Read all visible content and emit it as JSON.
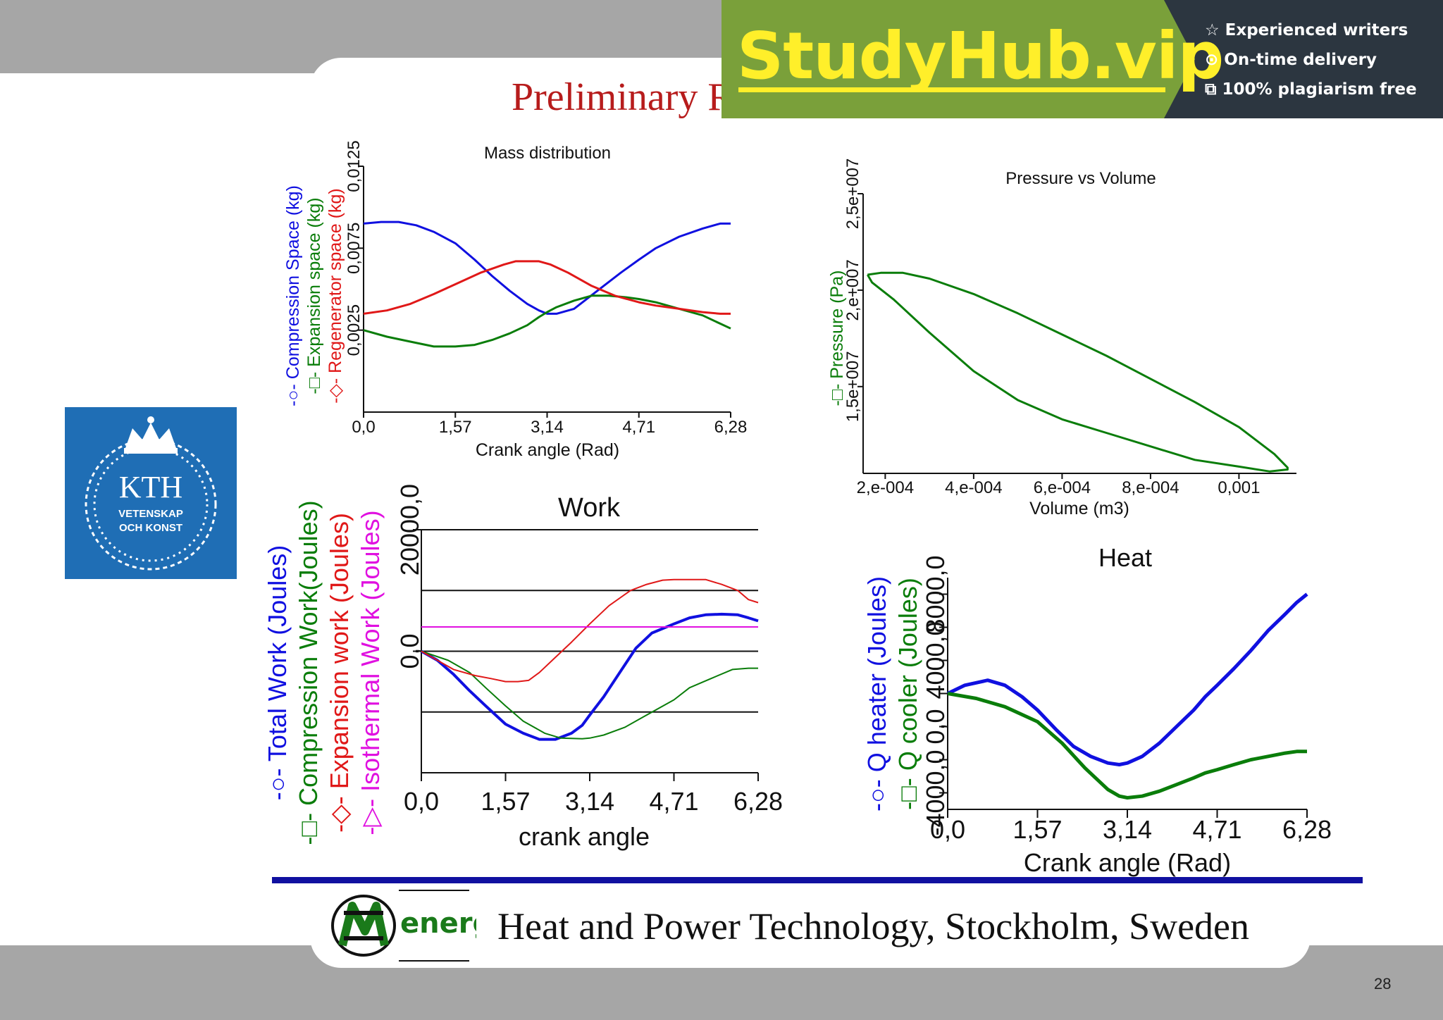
{
  "slide": {
    "title_visible": "Preliminary R",
    "footer": "Heat and Power Technology, Stockholm, Sweden",
    "page_number": "28",
    "logo": {
      "line1": "KTH",
      "line2": "VETENSKAP",
      "line3": "OCH KONST",
      "icon": "kth-crown-wreath-logo"
    },
    "footer_logo": {
      "text": "energi",
      "icon": "energi-logo"
    }
  },
  "ad": {
    "brand": "StudyHub.vip",
    "features": [
      {
        "icon": "star-icon",
        "glyph": "☆",
        "text": "Experienced writers"
      },
      {
        "icon": "clock-icon",
        "glyph": "⊙",
        "text": "On-time delivery"
      },
      {
        "icon": "copy-icon",
        "glyph": "⧉",
        "text": "100% plagiarism free"
      }
    ]
  },
  "colors": {
    "blue": "#1010e0",
    "green": "#0a7d0a",
    "red": "#e01818",
    "magenta": "#e010e0",
    "title_red": "#b71c1c"
  },
  "chart_data": [
    {
      "id": "mass",
      "type": "line",
      "title": "Mass distribution",
      "xlabel": "Crank angle (Rad)",
      "xlim": [
        0,
        6.28
      ],
      "ylim": [
        -0.0025,
        0.0125
      ],
      "xticks": [
        0,
        1.57,
        3.14,
        4.71,
        6.28
      ],
      "xtick_labels": [
        "0,0",
        "1,57",
        "3,14",
        "4,71",
        "6,28"
      ],
      "yticks": [
        0.0025,
        0.0075,
        0.0125
      ],
      "ytick_labels": [
        "0,0025",
        "0,0075",
        "0,0125"
      ],
      "series": [
        {
          "name": "Compression Space (kg)",
          "color": "#1010e0",
          "marker": "circle",
          "legend_glyph": "-○-",
          "x": [
            0,
            0.3,
            0.6,
            0.9,
            1.2,
            1.57,
            1.9,
            2.2,
            2.5,
            2.8,
            3.0,
            3.14,
            3.3,
            3.6,
            4.0,
            4.4,
            4.71,
            5.0,
            5.4,
            5.8,
            6.1,
            6.28
          ],
          "y": [
            0.009,
            0.0091,
            0.0091,
            0.0089,
            0.0085,
            0.0078,
            0.0068,
            0.0058,
            0.0049,
            0.0041,
            0.0037,
            0.0035,
            0.0035,
            0.0038,
            0.0049,
            0.006,
            0.0068,
            0.0075,
            0.0082,
            0.0087,
            0.009,
            0.009
          ]
        },
        {
          "name": "Expansion space (kg)",
          "color": "#0a7d0a",
          "marker": "square",
          "legend_glyph": "-□-",
          "x": [
            0,
            0.4,
            0.8,
            1.2,
            1.57,
            1.9,
            2.2,
            2.5,
            2.8,
            3.0,
            3.14,
            3.3,
            3.6,
            3.9,
            4.2,
            4.5,
            4.71,
            5.0,
            5.4,
            5.8,
            6.1,
            6.28
          ],
          "y": [
            0.0025,
            0.0021,
            0.0018,
            0.0015,
            0.0015,
            0.0016,
            0.0019,
            0.0023,
            0.0028,
            0.0033,
            0.0036,
            0.0039,
            0.0043,
            0.0046,
            0.0046,
            0.0045,
            0.0044,
            0.0042,
            0.0038,
            0.0034,
            0.0029,
            0.0026
          ]
        },
        {
          "name": "Regenerator space (kg)",
          "color": "#e01818",
          "marker": "diamond",
          "legend_glyph": "-◇-",
          "x": [
            0,
            0.4,
            0.8,
            1.2,
            1.57,
            2.0,
            2.4,
            2.6,
            2.8,
            3.0,
            3.2,
            3.5,
            3.9,
            4.3,
            4.71,
            5.0,
            5.4,
            5.8,
            6.1,
            6.28
          ],
          "y": [
            0.0035,
            0.0037,
            0.0041,
            0.0047,
            0.0053,
            0.006,
            0.0065,
            0.0067,
            0.0067,
            0.0067,
            0.0065,
            0.006,
            0.0052,
            0.0046,
            0.0042,
            0.004,
            0.0038,
            0.0036,
            0.0035,
            0.0035
          ]
        }
      ]
    },
    {
      "id": "pv",
      "type": "line",
      "title": "Pressure vs Volume",
      "xlabel": "Volume (m3)",
      "ylabel": "Pressure (Pa)",
      "xlim": [
        0.00015,
        0.00113
      ],
      "ylim": [
        10500000,
        25000000
      ],
      "xticks": [
        0.0002,
        0.0004,
        0.0006,
        0.0008,
        0.001
      ],
      "xtick_labels": [
        "2,e-004",
        "4,e-004",
        "6,e-004",
        "8,e-004",
        "0,001"
      ],
      "yticks": [
        15000000,
        20000000,
        25000000
      ],
      "ytick_labels": [
        "1,5e+007",
        "2,e+007",
        "2,5e+007"
      ],
      "series": [
        {
          "name": "Pressure (Pa)",
          "color": "#0a7d0a",
          "marker": "square",
          "legend_glyph": "-□-",
          "x": [
            0.00016,
            0.00019,
            0.00024,
            0.0003,
            0.0004,
            0.0005,
            0.0006,
            0.0007,
            0.0008,
            0.0009,
            0.001,
            0.00108,
            0.00111,
            0.00111,
            0.00107,
            0.001,
            0.0009,
            0.0008,
            0.0007,
            0.0006,
            0.0005,
            0.0004,
            0.0003,
            0.00022,
            0.00017,
            0.00016
          ],
          "y": [
            20800000,
            20900000,
            20900000,
            20600000,
            19800000,
            18800000,
            17700000,
            16600000,
            15400000,
            14200000,
            12900000,
            11500000,
            10800000,
            10700000,
            10600000,
            10850000,
            11200000,
            11900000,
            12600000,
            13300000,
            14300000,
            15800000,
            17800000,
            19500000,
            20400000,
            20800000
          ]
        }
      ]
    },
    {
      "id": "work",
      "type": "line",
      "title": "Work",
      "xlabel": "crank angle",
      "xlim": [
        0,
        6.28
      ],
      "ylim": [
        -20000,
        20000
      ],
      "xticks": [
        0,
        1.57,
        3.14,
        4.71,
        6.28
      ],
      "xtick_labels": [
        "0,0",
        "1,57",
        "3,14",
        "4,71",
        "6,28"
      ],
      "yticks": [
        0,
        20000
      ],
      "ytick_labels": [
        "0,0",
        "20000,0"
      ],
      "hlines": [
        20000,
        10000,
        0,
        -10000
      ],
      "series": [
        {
          "name": "Total Work (Joules)",
          "color": "#1010e0",
          "marker": "circle",
          "legend_glyph": "-○-",
          "width": 4,
          "x": [
            0,
            0.3,
            0.6,
            0.9,
            1.2,
            1.57,
            1.9,
            2.2,
            2.5,
            2.8,
            3.0,
            3.14,
            3.4,
            3.7,
            4.0,
            4.3,
            4.71,
            5.0,
            5.3,
            5.6,
            5.9,
            6.1,
            6.28
          ],
          "y": [
            0,
            -1500,
            -3800,
            -6500,
            -9000,
            -12000,
            -13500,
            -14500,
            -14500,
            -13500,
            -12200,
            -10500,
            -7500,
            -3500,
            500,
            3000,
            4500,
            5500,
            6000,
            6100,
            6000,
            5500,
            5000
          ]
        },
        {
          "name": "Compression Work(Joules)",
          "color": "#0a7d0a",
          "marker": "square",
          "legend_glyph": "-□-",
          "width": 2,
          "x": [
            0,
            0.5,
            0.9,
            1.2,
            1.57,
            1.9,
            2.3,
            2.6,
            3.0,
            3.14,
            3.4,
            3.8,
            4.2,
            4.71,
            5.0,
            5.4,
            5.8,
            6.1,
            6.28
          ],
          "y": [
            0,
            -1500,
            -3500,
            -6000,
            -9000,
            -11500,
            -13500,
            -14300,
            -14400,
            -14300,
            -13800,
            -12500,
            -10500,
            -8000,
            -6000,
            -4500,
            -3000,
            -2800,
            -2800
          ]
        },
        {
          "name": "Expansion work (Joules)",
          "color": "#e01818",
          "marker": "diamond",
          "legend_glyph": "-◇-",
          "width": 2,
          "x": [
            0,
            0.3,
            0.6,
            1.0,
            1.3,
            1.57,
            1.8,
            2.0,
            2.2,
            2.5,
            2.8,
            3.14,
            3.5,
            3.9,
            4.2,
            4.5,
            4.71,
            5.0,
            5.3,
            5.6,
            5.9,
            6.1,
            6.28
          ],
          "y": [
            0,
            -1500,
            -3000,
            -4000,
            -4500,
            -5000,
            -5000,
            -4800,
            -3500,
            -1000,
            1500,
            4500,
            7500,
            10000,
            11000,
            11700,
            11800,
            11800,
            11800,
            11000,
            10000,
            8500,
            8000
          ]
        },
        {
          "name": "Isothermal Work (Joules)",
          "color": "#e010e0",
          "marker": "triangle",
          "legend_glyph": "-▷-",
          "width": 2,
          "x": [
            0,
            6.28
          ],
          "y": [
            4000,
            4000
          ]
        }
      ]
    },
    {
      "id": "heat",
      "type": "line",
      "title": "Heat",
      "xlabel": "Crank angle (Rad)",
      "xlim": [
        0,
        6.28
      ],
      "ylim": [
        -5000,
        9000
      ],
      "xticks": [
        0,
        1.57,
        3.14,
        4.71,
        6.28
      ],
      "xtick_labels": [
        "0,0",
        "1,57",
        "3,14",
        "4,71",
        "6,28"
      ],
      "yticks": [
        -4000,
        -2000,
        0,
        2000,
        4000,
        6000,
        8000
      ],
      "ytick_labels": [
        "-4000,0",
        "0,0",
        "4000,0",
        "8000,0"
      ],
      "series": [
        {
          "name": "Q heater (Joules)",
          "color": "#1010e0",
          "marker": "circle",
          "legend_glyph": "-○-",
          "width": 5,
          "x": [
            0,
            0.3,
            0.7,
            1.0,
            1.3,
            1.57,
            1.9,
            2.2,
            2.5,
            2.8,
            3.0,
            3.14,
            3.4,
            3.7,
            4.0,
            4.3,
            4.5,
            4.71,
            5.0,
            5.3,
            5.6,
            5.9,
            6.1,
            6.28
          ],
          "y": [
            2000,
            2500,
            2800,
            2500,
            1800,
            1000,
            -200,
            -1200,
            -1800,
            -2200,
            -2300,
            -2200,
            -1800,
            -1000,
            0,
            1000,
            1800,
            2500,
            3500,
            4600,
            5800,
            6800,
            7500,
            8000
          ]
        },
        {
          "name": "Q cooler (Joules)",
          "color": "#0a7d0a",
          "marker": "square",
          "legend_glyph": "-□-",
          "width": 5,
          "x": [
            0,
            0.5,
            1.0,
            1.57,
            2.0,
            2.4,
            2.8,
            3.0,
            3.14,
            3.4,
            3.7,
            4.0,
            4.3,
            4.5,
            4.71,
            5.0,
            5.3,
            5.6,
            5.9,
            6.1,
            6.28
          ],
          "y": [
            2000,
            1700,
            1200,
            300,
            -1000,
            -2500,
            -3800,
            -4200,
            -4300,
            -4200,
            -3900,
            -3500,
            -3100,
            -2800,
            -2600,
            -2300,
            -2000,
            -1800,
            -1600,
            -1500,
            -1500
          ]
        }
      ]
    }
  ]
}
